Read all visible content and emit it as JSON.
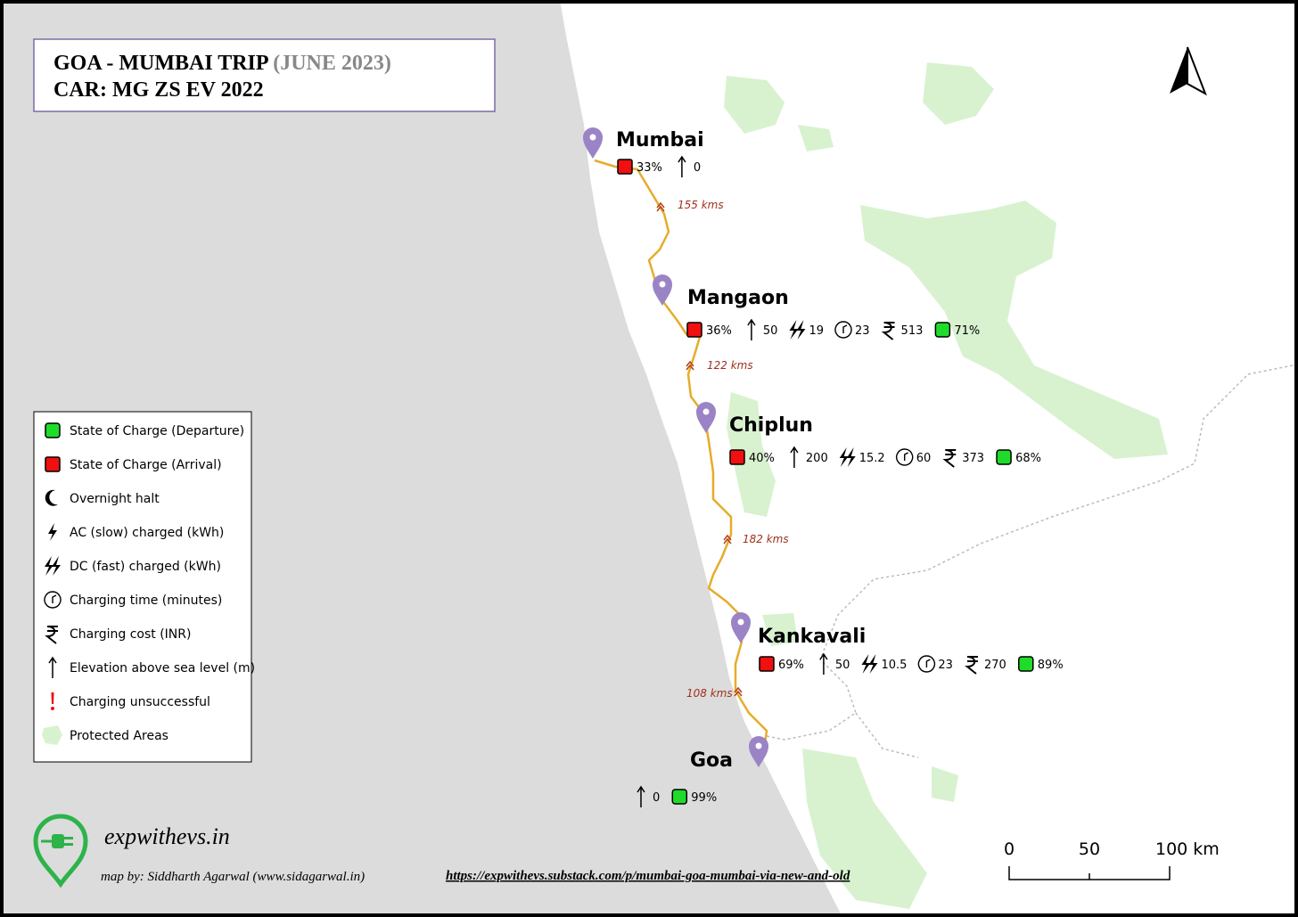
{
  "header": {
    "title": "GOA - MUMBAI TRIP",
    "date": "(JUNE 2023)",
    "subtitle": "CAR: MG ZS EV 2022"
  },
  "stops": [
    {
      "name": "Mumbai",
      "arrival": "33%",
      "elevation": "0"
    },
    {
      "name": "Mangaon",
      "arrival": "36%",
      "elevation": "50",
      "dc": "19",
      "time": "23",
      "cost": "513",
      "departure": "71%"
    },
    {
      "name": "Chiplun",
      "arrival": "40%",
      "elevation": "200",
      "dc": "15.2",
      "time": "60",
      "cost": "373",
      "departure": "68%"
    },
    {
      "name": "Kankavali",
      "arrival": "69%",
      "elevation": "50",
      "dc": "10.5",
      "time": "23",
      "cost": "270",
      "departure": "89%"
    },
    {
      "name": "Goa",
      "elevation": "0",
      "departure": "99%"
    }
  ],
  "segments": [
    "155 kms",
    "122 kms",
    "182 kms",
    "108 kms"
  ],
  "legend": [
    "State of Charge (Departure)",
    "State of Charge (Arrival)",
    "Overnight halt",
    "AC (slow) charged (kWh)",
    "DC (fast) charged (kWh)",
    "Charging time (minutes)",
    "Charging cost (INR)",
    "Elevation above sea level (m)",
    "Charging unsuccessful",
    "Protected Areas"
  ],
  "footer": {
    "brand": "expwithevs.in",
    "credit": "map by: Siddharth Agarwal (www.sidagarwal.in)",
    "link": "https://expwithevs.substack.com/p/mumbai-goa-mumbai-via-new-and-old"
  },
  "scale": [
    "0",
    "50",
    "100 km"
  ]
}
